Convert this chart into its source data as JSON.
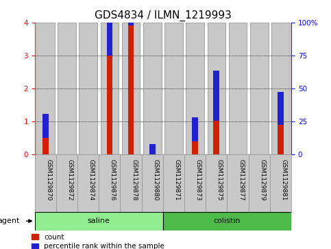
{
  "title": "GDS4834 / ILMN_1219993",
  "samples": [
    "GSM1129870",
    "GSM1129872",
    "GSM1129874",
    "GSM1129876",
    "GSM1129878",
    "GSM1129880",
    "GSM1129871",
    "GSM1129873",
    "GSM1129875",
    "GSM1129877",
    "GSM1129879",
    "GSM1129881"
  ],
  "count_values": [
    0.5,
    0.0,
    0.0,
    3.0,
    3.92,
    0.0,
    0.0,
    0.4,
    1.02,
    0.0,
    0.0,
    0.9
  ],
  "percentile_values": [
    18,
    0,
    0,
    25,
    30,
    8,
    0,
    18,
    38,
    0,
    0,
    25
  ],
  "groups": [
    {
      "label": "saline",
      "start": 0,
      "end": 6,
      "color": "#90EE90"
    },
    {
      "label": "colistin",
      "start": 6,
      "end": 12,
      "color": "#4CBB47"
    }
  ],
  "ylim_left": [
    0,
    4
  ],
  "ylim_right": [
    0,
    100
  ],
  "yticks_left": [
    0,
    1,
    2,
    3,
    4
  ],
  "yticks_right": [
    0,
    25,
    50,
    75,
    100
  ],
  "ytick_labels_right": [
    "0",
    "25",
    "50",
    "75",
    "100%"
  ],
  "count_color": "#CC2200",
  "percentile_color": "#2222CC",
  "bar_bg_color": "#C8C8C8",
  "grid_color": "#000000",
  "title_fontsize": 11,
  "tick_fontsize": 6.5,
  "agent_label": "agent",
  "legend_count": "count",
  "legend_pct": "percentile rank within the sample"
}
